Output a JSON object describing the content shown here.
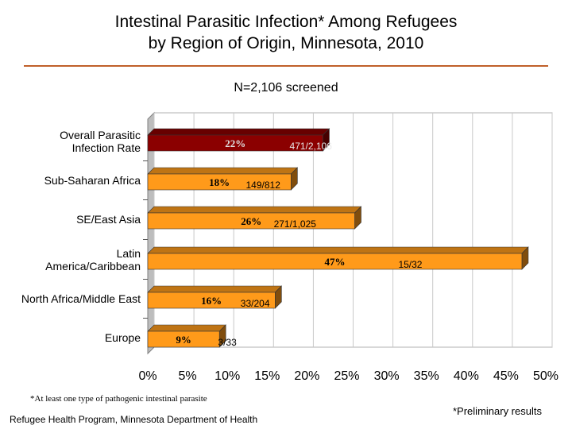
{
  "header": {
    "title_line1": "Intestinal Parasitic Infection* Among Refugees",
    "title_line2": "by Region of Origin, Minnesota, 2010",
    "subtitle": "N=2,106 screened"
  },
  "footer": {
    "footnote": "*At least one type of pathogenic intestinal parasite",
    "source": "Refugee Health Program, Minnesota Department of Health",
    "preliminary": "*Preliminary results"
  },
  "chart_data": {
    "type": "bar",
    "orientation": "horizontal",
    "categories": [
      [
        "Overall Parasitic",
        "Infection Rate"
      ],
      [
        "Sub-Saharan Africa"
      ],
      [
        "SE/East Asia"
      ],
      [
        "Latin",
        "America/Caribbean"
      ],
      [
        "North Africa/Middle East"
      ],
      [
        "Europe"
      ]
    ],
    "values": [
      22,
      18,
      26,
      47,
      16,
      9
    ],
    "percent_labels": [
      "22%",
      "18%",
      "26%",
      "47%",
      "16%",
      "9%"
    ],
    "count_labels": [
      "471/2,106",
      "149/812",
      "271/1,025",
      "15/32",
      "33/204",
      "3/33"
    ],
    "xlim": [
      0,
      50
    ],
    "xticks": [
      "0%",
      "5%",
      "10%",
      "15%",
      "20%",
      "25%",
      "30%",
      "35%",
      "40%",
      "45%",
      "50%"
    ],
    "grid": true,
    "colors": {
      "overall": "#8b0000",
      "regions": "#ff9a1a",
      "title_rule": "#c0602a",
      "gridline": "#c8c8c8"
    }
  }
}
